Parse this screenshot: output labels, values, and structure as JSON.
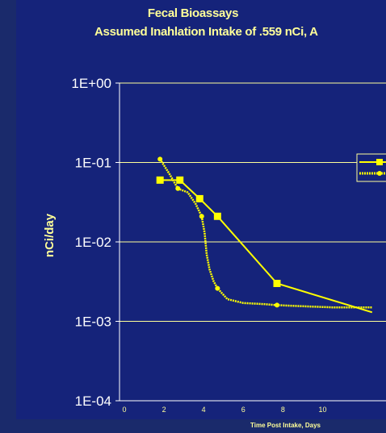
{
  "chart_data": {
    "type": "line",
    "title": "Fecal Bioassays",
    "subtitle": "Assumed Inahlation Intake of .559 nCi, A",
    "xlabel": "Time Post Intake, Days",
    "ylabel": "nCi/day",
    "xlim": [
      0,
      12.5
    ],
    "ylim": [
      0.0001,
      1
    ],
    "yscale": "log",
    "xticks": [
      "0",
      "2",
      "4",
      "6",
      "8",
      "10"
    ],
    "yticks": [
      "1E+00",
      "1E-01",
      "1E-02",
      "1E-03",
      "1E-04"
    ],
    "grid": "horizontal",
    "legend_position": "right",
    "series": [
      {
        "marker": "square",
        "color": "#ffff00",
        "x": [
          1.8,
          2.8,
          3.8,
          4.7,
          7.7,
          12.5
        ],
        "y": [
          0.06,
          0.06,
          0.035,
          0.021,
          0.003,
          0.0013
        ]
      },
      {
        "marker": "circle",
        "color": "#ffff00",
        "x": [
          1.8,
          2.3,
          2.7,
          3.2,
          3.6,
          3.9,
          4.05,
          4.15,
          4.3,
          4.5,
          4.7,
          5.2,
          6.0,
          7.0,
          7.7,
          9.0,
          10.5,
          12.5
        ],
        "y": [
          0.11,
          0.07,
          0.047,
          0.042,
          0.03,
          0.021,
          0.013,
          0.007,
          0.0045,
          0.0032,
          0.0026,
          0.0019,
          0.0017,
          0.00165,
          0.0016,
          0.00155,
          0.0015,
          0.0015
        ]
      }
    ]
  },
  "colors": {
    "background": "#15237a",
    "accent": "#ffff99",
    "series": "#ffff00"
  }
}
